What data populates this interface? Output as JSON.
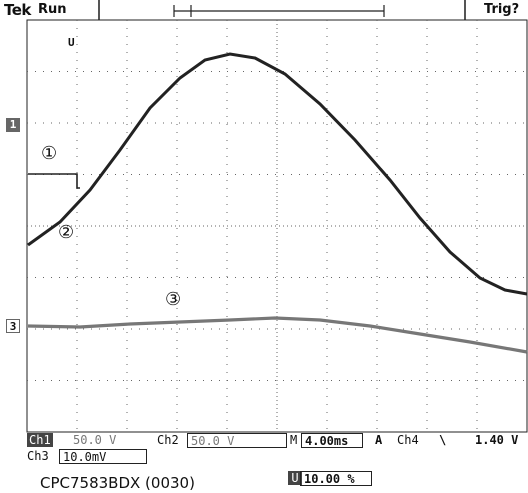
{
  "header": {
    "brand": "Tek",
    "mode": "Run",
    "trigger": "Trig?"
  },
  "markers": {
    "top_marker": "U",
    "ch1": "1",
    "ch3": "3"
  },
  "annotations": {
    "label1": "①",
    "label2": "②",
    "label3": "③"
  },
  "status": {
    "ch1_label": "Ch1",
    "ch1_value": "50.0 V",
    "ch2_label": "Ch2",
    "ch2_value": "50.0 V",
    "timebase_prefix": "M",
    "timebase": "4.00ms",
    "trigger_mode": "A",
    "trigger_source": "Ch4",
    "trigger_slope": "\\",
    "trigger_level": "1.40 V",
    "ch3_label": "Ch3",
    "ch3_value": "10.0mV",
    "position": "10.00 %"
  },
  "caption": "CPC7583BDX (0030)",
  "colors": {
    "trace_dark": "#222222",
    "trace_gray": "#777777",
    "grid": "#666666"
  }
}
